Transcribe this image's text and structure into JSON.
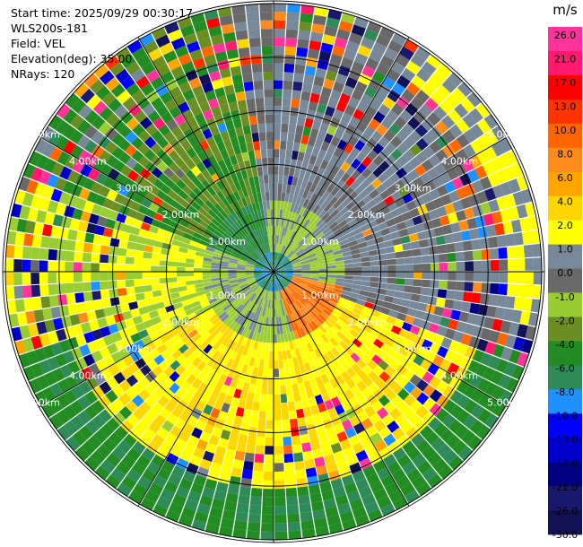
{
  "header": {
    "start_time": "Start time: 2025/09/29 00:30:17",
    "instrument": "WLS200s-181",
    "field": "Field: VEL",
    "elevation": "Elevation(deg): 35.00",
    "nrays": "NRays: 120"
  },
  "chart_data": {
    "type": "heatmap",
    "projection": "polar",
    "field": "VEL",
    "nrays": 120,
    "range_rings_km": [
      1,
      2,
      3,
      4,
      5
    ],
    "ring_labels": [
      "1.00km",
      "2.00km",
      "3.00km",
      "4.00km",
      "5.00km"
    ],
    "max_range_km": 5.05,
    "spokes_deg": [
      0,
      30,
      60,
      90,
      120,
      150,
      180,
      210,
      240,
      270,
      300,
      330
    ],
    "colorbar": {
      "unit": "m/s",
      "ticks": [
        "26.0",
        "21.0",
        "17.0",
        "13.0",
        "10.0",
        "8.0",
        "6.0",
        "4.0",
        "2.0",
        "1.0",
        "0.0",
        "-1.0",
        "-2.0",
        "-4.0",
        "-6.0",
        "-8.0",
        "-10.0",
        "-13.0",
        "-17.0",
        "-21.0",
        "-26.0",
        "-30.0"
      ],
      "colors": [
        "#ff3399",
        "#ff1a6e",
        "#ff0000",
        "#ff3300",
        "#ff6600",
        "#ff8c1a",
        "#ffa500",
        "#ffd700",
        "#ffff00",
        "#778899",
        "#696969",
        "#9acd32",
        "#6b8e23",
        "#228b22",
        "#2e8b57",
        "#1e90ff",
        "#0000ff",
        "#0000cd",
        "#000080",
        "#191970",
        "#111155"
      ]
    }
  }
}
